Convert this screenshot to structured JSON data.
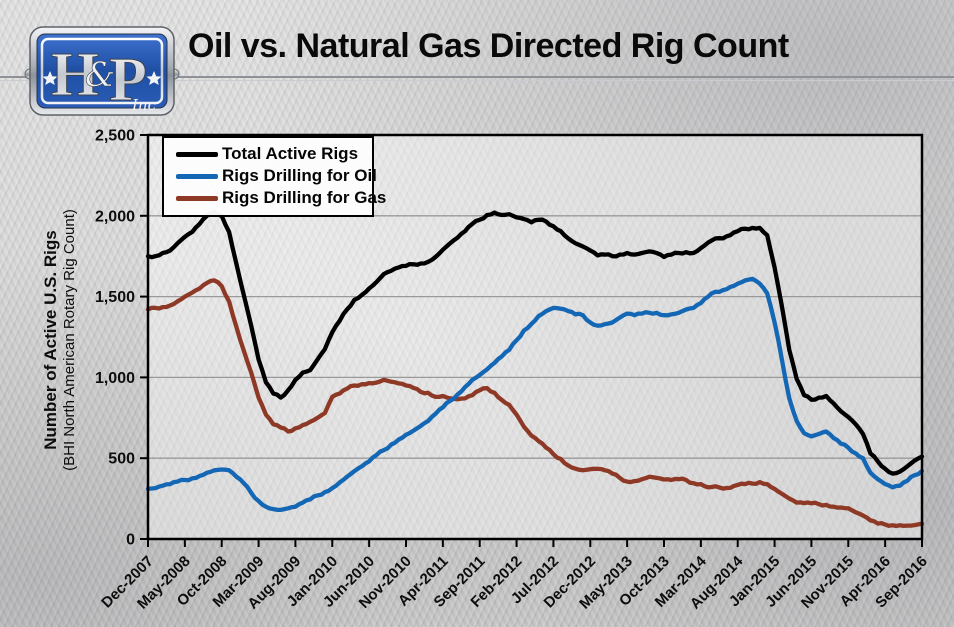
{
  "header": {
    "title": "Oil vs. Natural Gas Directed Rig Count",
    "logo": {
      "h": "H",
      "amp": "&",
      "p": "P",
      "suffix": "Inc"
    }
  },
  "chart_data": {
    "type": "line",
    "title": "Oil vs. Natural Gas Directed Rig Count",
    "ylabel": "Number of Active U.S. Rigs",
    "ylabel_sub": "(BHI North American Rotary Rig Count)",
    "ylim": [
      0,
      2500
    ],
    "grid": "horizontal",
    "legend_position": "top-left",
    "colors": {
      "axis": "#000000",
      "grid": "#9a9a9a"
    },
    "y_tick_values": [
      0,
      500,
      1000,
      1500,
      2000,
      2500
    ],
    "y_tick_labels": [
      "0",
      "500",
      "1,000",
      "1,500",
      "2,000",
      "2,500"
    ],
    "x_tick_interval_months": 5,
    "x_range": [
      "Dec-2007",
      "Sep-2016"
    ],
    "x_tick_labels": [
      "Dec-2007",
      "May-2008",
      "Oct-2008",
      "Mar-2009",
      "Aug-2009",
      "Jan-2010",
      "Jun-2010",
      "Nov-2010",
      "Apr-2011",
      "Sep-2011",
      "Feb-2012",
      "Jul-2012",
      "Dec-2012",
      "May-2013",
      "Oct-2013",
      "Mar-2014",
      "Aug-2014",
      "Jan-2015",
      "Jun-2015",
      "Nov-2015",
      "Apr-2016",
      "Sep-2016"
    ],
    "series": [
      {
        "name": "Total Active Rigs",
        "color": "#000000",
        "values": [
          1750,
          1750,
          1770,
          1785,
          1830,
          1870,
          1900,
          1950,
          2000,
          2025,
          2000,
          1900,
          1700,
          1510,
          1320,
          1110,
          970,
          900,
          875,
          920,
          985,
          1030,
          1045,
          1110,
          1175,
          1280,
          1350,
          1420,
          1480,
          1510,
          1550,
          1590,
          1640,
          1660,
          1680,
          1690,
          1700,
          1705,
          1715,
          1745,
          1790,
          1830,
          1865,
          1905,
          1950,
          1975,
          2005,
          2020,
          2005,
          2010,
          1990,
          1980,
          1960,
          1975,
          1965,
          1935,
          1905,
          1860,
          1830,
          1810,
          1785,
          1755,
          1760,
          1750,
          1760,
          1770,
          1760,
          1770,
          1780,
          1770,
          1745,
          1760,
          1770,
          1775,
          1770,
          1800,
          1835,
          1860,
          1860,
          1880,
          1905,
          1920,
          1925,
          1925,
          1880,
          1680,
          1440,
          1170,
          990,
          890,
          862,
          875,
          885,
          840,
          790,
          755,
          710,
          650,
          530,
          480,
          435,
          405,
          417,
          450,
          485,
          510
        ]
      },
      {
        "name": "Rigs Drilling for Oil",
        "color": "#1467B5",
        "values": [
          310,
          315,
          330,
          340,
          355,
          365,
          375,
          390,
          410,
          425,
          430,
          425,
          385,
          345,
          285,
          235,
          200,
          185,
          180,
          190,
          200,
          225,
          245,
          270,
          290,
          315,
          350,
          385,
          420,
          450,
          480,
          520,
          550,
          585,
          615,
          645,
          670,
          700,
          730,
          775,
          815,
          855,
          895,
          940,
          985,
          1015,
          1050,
          1090,
          1130,
          1170,
          1230,
          1290,
          1330,
          1380,
          1410,
          1430,
          1425,
          1410,
          1390,
          1385,
          1340,
          1320,
          1330,
          1340,
          1370,
          1395,
          1385,
          1395,
          1400,
          1400,
          1385,
          1390,
          1400,
          1420,
          1430,
          1460,
          1500,
          1530,
          1540,
          1560,
          1580,
          1600,
          1610,
          1580,
          1520,
          1340,
          1110,
          870,
          730,
          655,
          635,
          650,
          665,
          625,
          590,
          565,
          530,
          500,
          410,
          370,
          340,
          320,
          330,
          360,
          395,
          420
        ]
      },
      {
        "name": "Rigs Drilling for Gas",
        "color": "#8E3826",
        "values": [
          1420,
          1430,
          1435,
          1445,
          1470,
          1500,
          1525,
          1550,
          1585,
          1600,
          1565,
          1470,
          1310,
          1165,
          1030,
          875,
          770,
          710,
          690,
          665,
          685,
          705,
          725,
          750,
          780,
          880,
          900,
          930,
          950,
          958,
          965,
          968,
          985,
          973,
          963,
          950,
          935,
          910,
          905,
          880,
          885,
          870,
          865,
          870,
          890,
          920,
          933,
          905,
          860,
          830,
          770,
          695,
          640,
          605,
          565,
          525,
          495,
          455,
          435,
          425,
          432,
          434,
          425,
          405,
          378,
          355,
          358,
          370,
          385,
          378,
          368,
          365,
          370,
          365,
          345,
          340,
          320,
          326,
          312,
          316,
          335,
          340,
          343,
          352,
          340,
          310,
          280,
          250,
          225,
          222,
          221,
          216,
          211,
          200,
          195,
          190,
          165,
          145,
          115,
          95,
          90,
          85,
          85,
          83,
          86,
          95
        ]
      }
    ]
  }
}
